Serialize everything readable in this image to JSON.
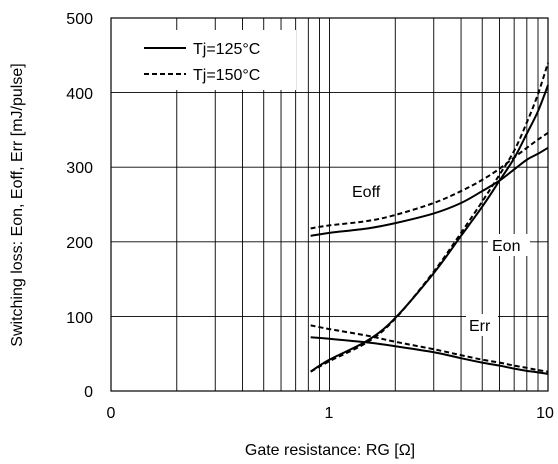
{
  "chart_data": {
    "type": "line",
    "xlabel": "Gate resistance: RG [Ω]",
    "ylabel": "Switching loss: Eon, Eoff, Err [mJ/pulse]",
    "x_scale": "log",
    "x_ticks": [
      "0",
      "1",
      "10"
    ],
    "y_ticks": [
      "0",
      "100",
      "200",
      "300",
      "400",
      "500"
    ],
    "ylim": [
      0,
      500
    ],
    "grid": true,
    "legend": {
      "position": "top-left",
      "entries": [
        {
          "label": "Tj=125°C",
          "style": "solid"
        },
        {
          "label": "Tj=150°C",
          "style": "dashed"
        }
      ]
    },
    "annotations": [
      "Eoff",
      "Eon",
      "Err"
    ],
    "series": [
      {
        "curve": "Eoff",
        "temp": "Tj=125°C",
        "style": "solid",
        "x": [
          0.82,
          1,
          1.5,
          2,
          3,
          4,
          5,
          6,
          7,
          8,
          9,
          10
        ],
        "y": [
          208,
          212,
          218,
          225,
          238,
          252,
          268,
          282,
          297,
          310,
          318,
          326
        ]
      },
      {
        "curve": "Eoff",
        "temp": "Tj=150°C",
        "style": "dashed",
        "x": [
          0.82,
          1,
          1.5,
          2,
          3,
          4,
          5,
          6,
          7,
          8,
          9,
          10
        ],
        "y": [
          218,
          222,
          228,
          236,
          252,
          268,
          283,
          298,
          313,
          326,
          337,
          346
        ]
      },
      {
        "curve": "Eon",
        "temp": "Tj=125°C",
        "style": "solid",
        "x": [
          0.82,
          1,
          1.5,
          2,
          3,
          4,
          5,
          6,
          7,
          8,
          9,
          10
        ],
        "y": [
          26,
          42,
          68,
          98,
          158,
          208,
          247,
          282,
          312,
          345,
          375,
          410
        ]
      },
      {
        "curve": "Eon",
        "temp": "Tj=150°C",
        "style": "dashed",
        "x": [
          0.82,
          1,
          1.5,
          2,
          3,
          4,
          5,
          6,
          7,
          8,
          9,
          10
        ],
        "y": [
          26,
          40,
          66,
          97,
          160,
          212,
          254,
          290,
          322,
          360,
          398,
          440
        ]
      },
      {
        "curve": "Err",
        "temp": "Tj=125°C",
        "style": "solid",
        "x": [
          0.82,
          1,
          1.5,
          2,
          3,
          4,
          5,
          6,
          7,
          8,
          9,
          10
        ],
        "y": [
          72,
          70,
          65,
          60,
          52,
          44,
          38,
          34,
          30,
          27,
          25,
          23
        ]
      },
      {
        "curve": "Err",
        "temp": "Tj=150°C",
        "style": "dashed",
        "x": [
          0.82,
          1,
          1.5,
          2,
          3,
          4,
          5,
          6,
          7,
          8,
          9,
          10
        ],
        "y": [
          88,
          83,
          74,
          66,
          56,
          48,
          42,
          38,
          34,
          31,
          28,
          26
        ]
      }
    ]
  }
}
